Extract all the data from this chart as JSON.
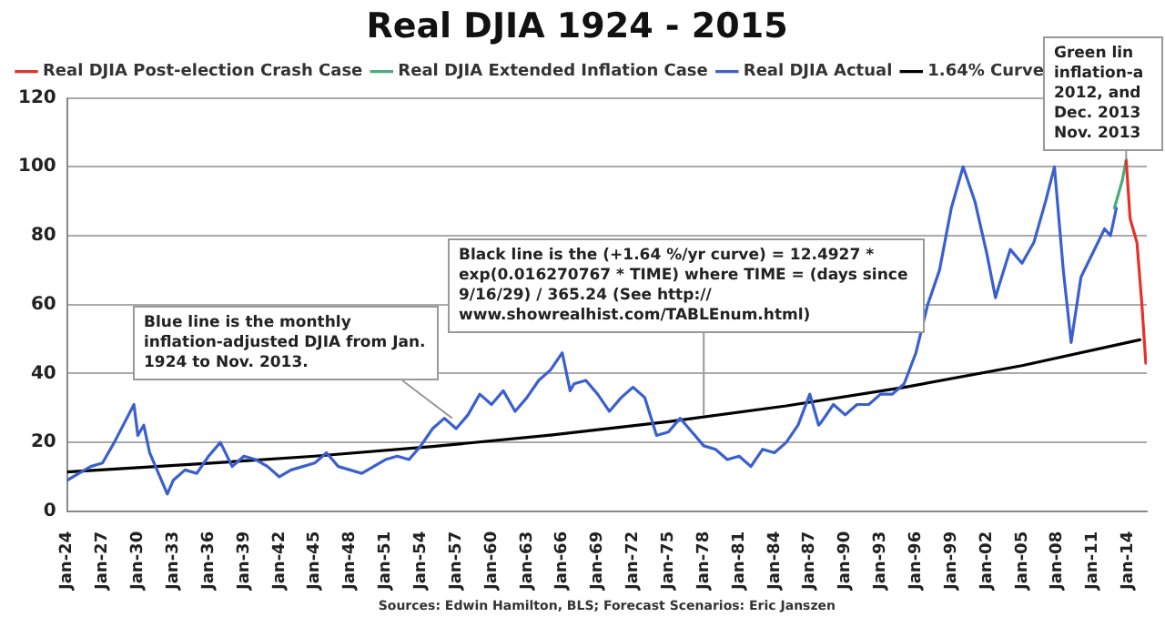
{
  "chart_data": {
    "type": "line",
    "title": "Real DJIA 1924 - 2015",
    "xlim": [
      "1924-01",
      "2015-08"
    ],
    "xticks": [
      {
        "value": "1924-01",
        "label": "Jan-24"
      },
      {
        "value": "1927-01",
        "label": "Jan-27"
      },
      {
        "value": "1930-01",
        "label": "Jan-30"
      },
      {
        "value": "1933-01",
        "label": "Jan-33"
      },
      {
        "value": "1936-01",
        "label": "Jan-36"
      },
      {
        "value": "1939-01",
        "label": "Jan-39"
      },
      {
        "value": "1942-01",
        "label": "Jan-42"
      },
      {
        "value": "1945-01",
        "label": "Jan-45"
      },
      {
        "value": "1948-01",
        "label": "Jan-48"
      },
      {
        "value": "1951-01",
        "label": "Jan-51"
      },
      {
        "value": "1954-01",
        "label": "Jan-54"
      },
      {
        "value": "1957-01",
        "label": "Jan-57"
      },
      {
        "value": "1960-01",
        "label": "Jan-60"
      },
      {
        "value": "1963-01",
        "label": "Jan-63"
      },
      {
        "value": "1966-01",
        "label": "Jan-66"
      },
      {
        "value": "1969-01",
        "label": "Jan-69"
      },
      {
        "value": "1972-01",
        "label": "Jan-72"
      },
      {
        "value": "1975-01",
        "label": "Jan-75"
      },
      {
        "value": "1978-01",
        "label": "Jan-78"
      },
      {
        "value": "1981-01",
        "label": "Jan-81"
      },
      {
        "value": "1984-01",
        "label": "Jan-84"
      },
      {
        "value": "1987-01",
        "label": "Jan-87"
      },
      {
        "value": "1990-01",
        "label": "Jan-90"
      },
      {
        "value": "1993-01",
        "label": "Jan-93"
      },
      {
        "value": "1996-01",
        "label": "Jan-96"
      },
      {
        "value": "1999-01",
        "label": "Jan-99"
      },
      {
        "value": "2002-01",
        "label": "Jan-02"
      },
      {
        "value": "2005-01",
        "label": "Jan-05"
      },
      {
        "value": "2008-01",
        "label": "Jan-08"
      },
      {
        "value": "2011-01",
        "label": "Jan-11"
      },
      {
        "value": "2014-01",
        "label": "Jan-14"
      }
    ],
    "ylim": [
      0,
      120
    ],
    "yticks": [
      0,
      20,
      40,
      60,
      80,
      100,
      120
    ],
    "grid": "y",
    "legend": "top",
    "marker": "none",
    "line_style": "solid",
    "series": [
      {
        "name": "Real DJIA Post-election Crash Case",
        "color": "#e8302a",
        "x": [
          "2013-11",
          "2014-03",
          "2014-10",
          "2015-03",
          "2015-07"
        ],
        "values": [
          102,
          85,
          78,
          60,
          43
        ]
      },
      {
        "name": "Real DJIA Extended Inflation Case",
        "color": "#4cab7a",
        "x": [
          "2012-11",
          "2013-07",
          "2013-11"
        ],
        "values": [
          88,
          96,
          102
        ]
      },
      {
        "name": "Real DJIA Actual",
        "color": "#3a5fd0",
        "x": [
          "1924-01",
          "1925-01",
          "1926-01",
          "1927-01",
          "1928-01",
          "1929-09",
          "1930-01",
          "1930-07",
          "1931-01",
          "1932-07",
          "1933-01",
          "1934-01",
          "1935-01",
          "1936-01",
          "1937-01",
          "1938-01",
          "1939-01",
          "1940-01",
          "1941-01",
          "1942-01",
          "1943-01",
          "1944-01",
          "1945-01",
          "1946-01",
          "1947-01",
          "1948-01",
          "1949-01",
          "1950-01",
          "1951-01",
          "1952-01",
          "1953-01",
          "1954-01",
          "1955-01",
          "1956-01",
          "1957-01",
          "1958-01",
          "1959-01",
          "1960-01",
          "1961-01",
          "1962-01",
          "1963-01",
          "1964-01",
          "1965-01",
          "1966-01",
          "1966-09",
          "1967-01",
          "1968-01",
          "1969-01",
          "1970-01",
          "1971-01",
          "1972-01",
          "1973-01",
          "1974-01",
          "1975-01",
          "1976-01",
          "1977-01",
          "1978-01",
          "1979-01",
          "1980-01",
          "1981-01",
          "1982-01",
          "1983-01",
          "1984-01",
          "1985-01",
          "1986-01",
          "1987-01",
          "1987-10",
          "1988-01",
          "1989-01",
          "1990-01",
          "1991-01",
          "1992-01",
          "1993-01",
          "1994-01",
          "1995-01",
          "1996-01",
          "1997-01",
          "1998-01",
          "1999-01",
          "2000-01",
          "2001-01",
          "2002-01",
          "2002-10",
          "2003-01",
          "2004-01",
          "2005-01",
          "2006-01",
          "2007-01",
          "2007-10",
          "2008-07",
          "2009-03",
          "2010-01",
          "2011-01",
          "2012-01",
          "2012-07",
          "2013-01"
        ],
        "values": [
          9,
          11,
          13,
          14,
          20,
          31,
          22,
          25,
          17,
          5,
          9,
          12,
          11,
          16,
          20,
          13,
          16,
          15,
          13,
          10,
          12,
          13,
          14,
          17,
          13,
          12,
          11,
          13,
          15,
          16,
          15,
          19,
          24,
          27,
          24,
          28,
          34,
          31,
          35,
          29,
          33,
          38,
          41,
          46,
          35,
          37,
          38,
          34,
          29,
          33,
          36,
          33,
          22,
          23,
          27,
          23,
          19,
          18,
          15,
          16,
          13,
          18,
          17,
          20,
          25,
          34,
          25,
          26,
          31,
          28,
          31,
          31,
          34,
          34,
          37,
          46,
          60,
          70,
          88,
          100,
          90,
          75,
          62,
          65,
          76,
          72,
          78,
          90,
          100,
          70,
          49,
          68,
          75,
          82,
          80,
          88
        ]
      },
      {
        "name": "1.64% Curve",
        "color": "#000000",
        "x": [
          "1924-01",
          "1935-01",
          "1945-01",
          "1955-01",
          "1965-01",
          "1975-01",
          "1985-01",
          "1995-01",
          "2005-01",
          "2015-01"
        ],
        "values": [
          11.4,
          13.7,
          16.0,
          18.8,
          22.1,
          26.0,
          30.6,
          36.0,
          42.3,
          49.8
        ]
      }
    ],
    "annotations": [
      {
        "text": "Blue line is the monthly inflation-adjusted DJIA from Jan. 1924 to Nov. 2013.",
        "x": "1956-09",
        "y": 27
      },
      {
        "text": "Black line is the (+1.64 %/yr curve) = 12.4927 * exp(0.016270767 * TIME) where TIME = (days since 9/16/29) / 365.24 (See http:// www.showrealhist.com/TABLEnum.html)",
        "x": "1978-01",
        "y": 28
      },
      {
        "text": "Green lin inflation-a 2012, and Dec. 2013 Nov. 2013",
        "x": "2013-11",
        "y": 102
      },
      "Sources: Edwin Hamilton, BLS; Forecast Scenarios: Eric Janszen"
    ]
  }
}
